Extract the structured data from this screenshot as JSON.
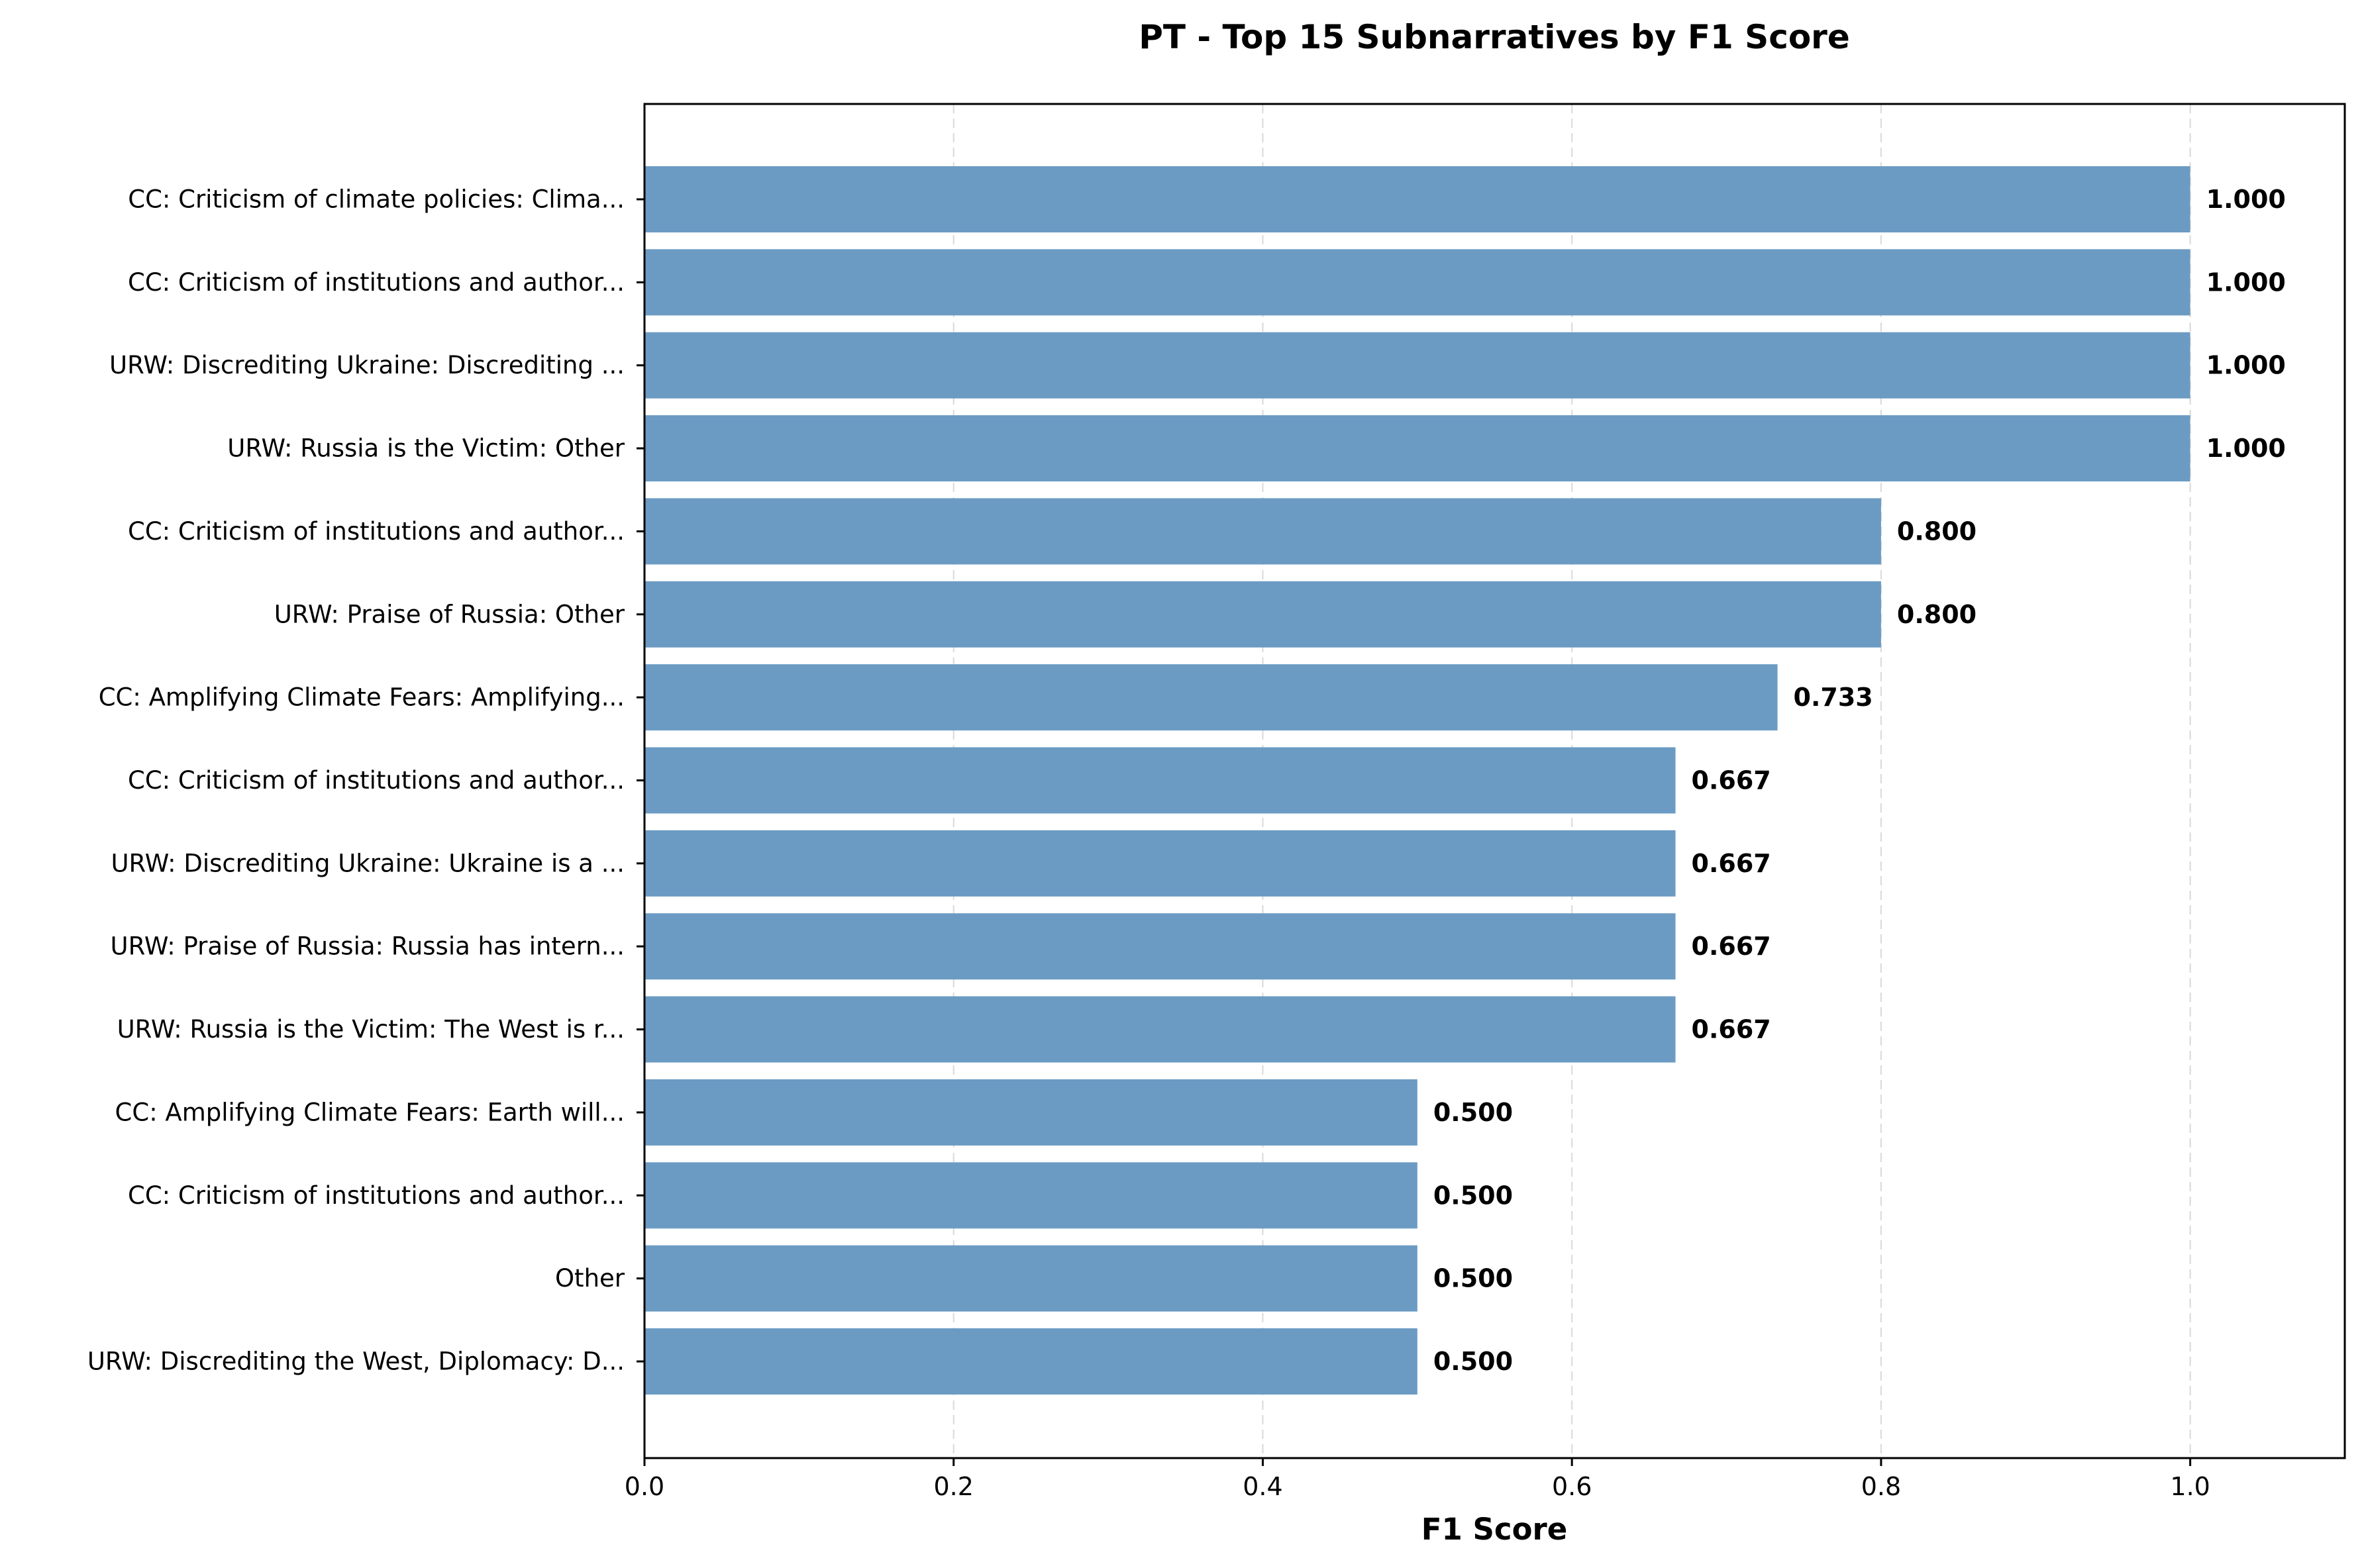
{
  "chart_data": {
    "type": "bar",
    "orientation": "horizontal",
    "title": "PT - Top 15 Subnarratives by F1 Score",
    "xlabel": "F1 Score",
    "ylabel": "",
    "xlim": [
      0,
      1.1
    ],
    "x_ticks": [
      0.0,
      0.2,
      0.4,
      0.6,
      0.8,
      1.0
    ],
    "x_tick_labels": [
      "0.0",
      "0.2",
      "0.4",
      "0.6",
      "0.8",
      "1.0"
    ],
    "grid": "vertical dashed",
    "bar_color": "#6b9bc3",
    "categories": [
      "CC: Criticism of climate policies: Clima...",
      "CC: Criticism of institutions and author...",
      "URW: Discrediting Ukraine: Discrediting ...",
      "URW: Russia is the Victim: Other",
      "CC: Criticism of institutions and author...",
      "URW: Praise of Russia: Other",
      "CC: Amplifying Climate Fears: Amplifying...",
      "CC: Criticism of institutions and author...",
      "URW: Discrediting Ukraine: Ukraine is a ...",
      "URW: Praise of Russia: Russia has intern...",
      "URW: Russia is the Victim: The West is r...",
      "CC: Amplifying Climate Fears: Earth will...",
      "CC: Criticism of institutions and author...",
      "Other",
      "URW: Discrediting the West, Diplomacy: D..."
    ],
    "values": [
      1.0,
      1.0,
      1.0,
      1.0,
      0.8,
      0.8,
      0.733,
      0.667,
      0.667,
      0.667,
      0.667,
      0.5,
      0.5,
      0.5,
      0.5
    ],
    "value_labels": [
      "1.000",
      "1.000",
      "1.000",
      "1.000",
      "0.800",
      "0.800",
      "0.733",
      "0.667",
      "0.667",
      "0.667",
      "0.667",
      "0.500",
      "0.500",
      "0.500",
      "0.500"
    ]
  }
}
